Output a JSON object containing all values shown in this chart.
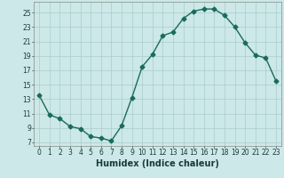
{
  "x": [
    0,
    1,
    2,
    3,
    4,
    5,
    6,
    7,
    8,
    9,
    10,
    11,
    12,
    13,
    14,
    15,
    16,
    17,
    18,
    19,
    20,
    21,
    22,
    23
  ],
  "y": [
    13.5,
    10.8,
    10.3,
    9.2,
    8.9,
    7.8,
    7.6,
    7.2,
    9.3,
    13.2,
    17.5,
    19.2,
    21.8,
    22.3,
    24.2,
    25.2,
    25.5,
    25.5,
    24.6,
    23.0,
    20.8,
    19.1,
    18.7,
    15.5
  ],
  "xlabel": "Humidex (Indice chaleur)",
  "xlim": [
    -0.5,
    23.5
  ],
  "ylim": [
    6.5,
    26.5
  ],
  "yticks": [
    7,
    9,
    11,
    13,
    15,
    17,
    19,
    21,
    23,
    25
  ],
  "xticks": [
    0,
    1,
    2,
    3,
    4,
    5,
    6,
    7,
    8,
    9,
    10,
    11,
    12,
    13,
    14,
    15,
    16,
    17,
    18,
    19,
    20,
    21,
    22,
    23
  ],
  "line_color": "#1a6b5a",
  "marker": "D",
  "marker_size": 2.5,
  "bg_color": "#cce8e8",
  "grid_color": "#aacccc",
  "line_width": 1.0,
  "tick_fontsize": 5.5,
  "xlabel_fontsize": 7.0
}
